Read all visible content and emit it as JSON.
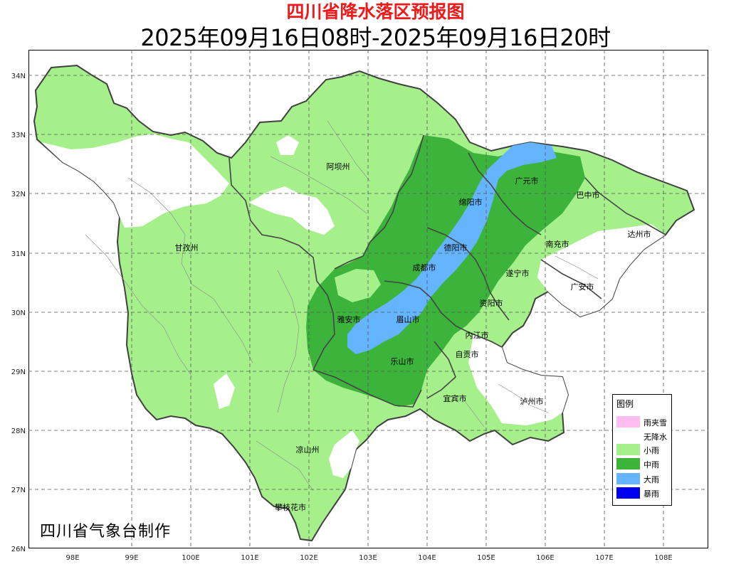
{
  "title": "四川省降水落区预报图",
  "subtitle": "2025年09月16日08时-2025年09月16日20时",
  "credit": "四川省气象台制作",
  "lon_ticks": [
    "98E",
    "99E",
    "100E",
    "101E",
    "102E",
    "103E",
    "104E",
    "105E",
    "106E",
    "107E",
    "108E"
  ],
  "lat_ticks": [
    "34N",
    "33N",
    "32N",
    "31N",
    "30N",
    "29N",
    "28N",
    "27N",
    "26N"
  ],
  "cities": [
    "阿坝州",
    "甘孜州",
    "广元市",
    "巴中市",
    "绵阳市",
    "达州市",
    "德阳市",
    "南充市",
    "成都市",
    "遂宁市",
    "广安市",
    "资阳市",
    "雅安市",
    "眉山市",
    "内江市",
    "自贡市",
    "乐山市",
    "宜宾市",
    "泸州市",
    "凉山州",
    "攀枝花市"
  ],
  "legend": {
    "title": "图例",
    "items": [
      {
        "label": "雨夹雪",
        "color": "#ffbdf0"
      },
      {
        "label": "无降水",
        "color": "#ffffff"
      },
      {
        "label": "小雨",
        "color": "#a6f08c"
      },
      {
        "label": "中雨",
        "color": "#3cb43c"
      },
      {
        "label": "大雨",
        "color": "#64b4ff"
      },
      {
        "label": "暴雨",
        "color": "#0000f0"
      }
    ]
  },
  "colors": {
    "light_rain": "#a6f08c",
    "moderate_rain": "#3cb43c",
    "heavy_rain": "#64b4ff",
    "title_red": "#f01818",
    "boundary": "#404040"
  }
}
